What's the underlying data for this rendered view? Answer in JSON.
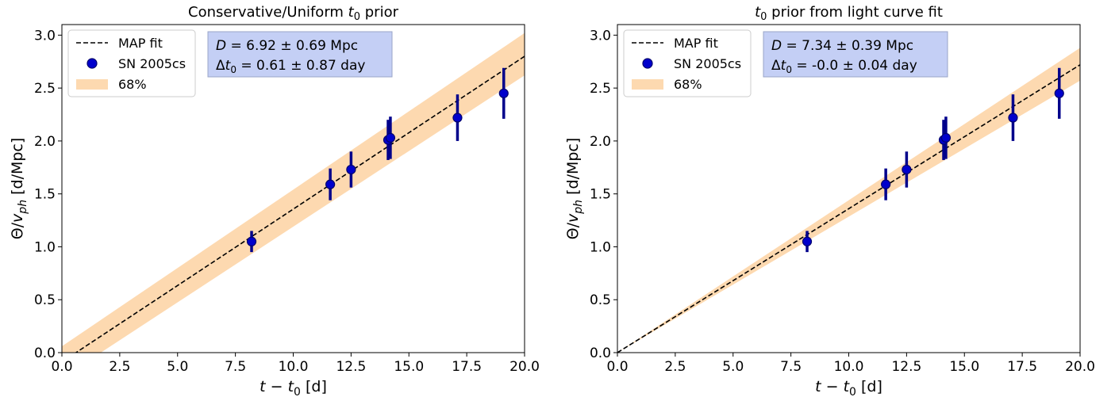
{
  "chart_data": [
    {
      "type": "scatter",
      "title_plain": "Conservative/Uniform ",
      "title_math": "t",
      "title_sub": "0",
      "title_tail": " prior",
      "xlabel": "t − t₀ [d]",
      "ylabel": "Θ/v_ph [d/Mpc]",
      "xlim": [
        0.0,
        20.0
      ],
      "ylim": [
        0.0,
        3.1
      ],
      "xticks": [
        "0.0",
        "2.5",
        "5.0",
        "7.5",
        "10.0",
        "12.5",
        "15.0",
        "17.5",
        "20.0"
      ],
      "yticks": [
        "0.0",
        "0.5",
        "1.0",
        "1.5",
        "2.0",
        "2.5",
        "3.0"
      ],
      "legend": [
        "MAP fit",
        "SN 2005cs",
        "68%"
      ],
      "legend_position": "upper-left",
      "annotation": [
        "D  =  6.92 ± 0.69 Mpc",
        "Δt₀  =  0.61 ± 0.87 day"
      ],
      "fit_line": {
        "x": [
          0.0,
          20.0
        ],
        "y": [
          -0.088,
          2.8
        ]
      },
      "band_upper": {
        "x": [
          0.0,
          20.0
        ],
        "y": [
          0.06,
          3.02
        ]
      },
      "band_lower": {
        "x": [
          0.0,
          20.0
        ],
        "y": [
          -0.24,
          2.62
        ]
      },
      "points": {
        "x": [
          8.2,
          11.6,
          12.5,
          14.1,
          14.2,
          17.1,
          19.1
        ],
        "y": [
          1.05,
          1.59,
          1.73,
          2.01,
          2.03,
          2.22,
          2.45
        ],
        "yerr": [
          0.1,
          0.15,
          0.17,
          0.19,
          0.2,
          0.22,
          0.24
        ]
      }
    },
    {
      "type": "scatter",
      "title_plain": "",
      "title_math": "t",
      "title_sub": "0",
      "title_tail": " prior from light curve fit",
      "xlabel": "t − t₀ [d]",
      "ylabel": "Θ/v_ph [d/Mpc]",
      "xlim": [
        0.0,
        20.0
      ],
      "ylim": [
        0.0,
        3.1
      ],
      "xticks": [
        "0.0",
        "2.5",
        "5.0",
        "7.5",
        "10.0",
        "12.5",
        "15.0",
        "17.5",
        "20.0"
      ],
      "yticks": [
        "0.0",
        "0.5",
        "1.0",
        "1.5",
        "2.0",
        "2.5",
        "3.0"
      ],
      "legend": [
        "MAP fit",
        "SN 2005cs",
        "68%"
      ],
      "legend_position": "upper-left",
      "annotation": [
        "D  =  7.34 ± 0.39 Mpc",
        "Δt₀  =  -0.0 ± 0.04 day"
      ],
      "fit_line": {
        "x": [
          0.0,
          20.0
        ],
        "y": [
          0.0,
          2.72
        ]
      },
      "band_upper": {
        "x": [
          0.0,
          20.0
        ],
        "y": [
          0.0,
          2.88
        ]
      },
      "band_lower": {
        "x": [
          0.0,
          20.0
        ],
        "y": [
          0.0,
          2.57
        ]
      },
      "points": {
        "x": [
          8.2,
          11.6,
          12.5,
          14.1,
          14.2,
          17.1,
          19.1
        ],
        "y": [
          1.05,
          1.59,
          1.73,
          2.01,
          2.03,
          2.22,
          2.45
        ],
        "yerr": [
          0.1,
          0.15,
          0.17,
          0.19,
          0.2,
          0.22,
          0.24
        ]
      }
    }
  ],
  "colors": {
    "band": "#fdd9b0",
    "point_fill": "#0000cc",
    "point_edge": "#00006e",
    "errorbar": "#00008b",
    "annotation_bg": "#c4cff5",
    "annotation_border": "#9aa6c8"
  }
}
